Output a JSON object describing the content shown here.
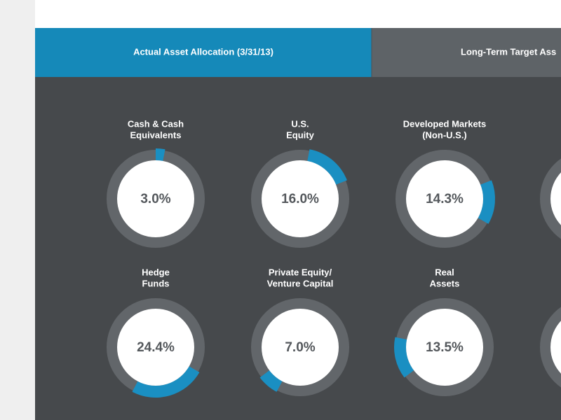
{
  "tabs": [
    "Actual Asset Allocation (3/31/13)",
    "Long-Term Target Ass"
  ],
  "chart_data": [
    {
      "type": "donut",
      "title": [
        "Cash & Cash",
        "Equivalents"
      ],
      "values": [
        3
      ],
      "value_labels": [
        "3.0%"
      ],
      "color": "#1a8fc2"
    },
    {
      "type": "donut",
      "title": [
        "U.S.",
        "Equity"
      ],
      "values": [
        16
      ],
      "value_labels": [
        "16.0%"
      ],
      "color": "#1a8fc2"
    },
    {
      "type": "donut",
      "title": [
        "Developed Markets",
        "(Non-U.S.)"
      ],
      "values": [
        14.3
      ],
      "value_labels": [
        "14.3%"
      ],
      "color": "#1a8fc2"
    },
    {
      "type": "donut",
      "title": [
        "Hedge",
        "Funds"
      ],
      "values": [
        24.4
      ],
      "value_labels": [
        "24.4%"
      ],
      "color": "#1a8fc2"
    },
    {
      "type": "donut",
      "title": [
        "Private Equity/",
        "Venture Capital"
      ],
      "values": [
        7
      ],
      "value_labels": [
        "7.0%"
      ],
      "color": "#1a8fc2"
    },
    {
      "type": "donut",
      "title": [
        "Real",
        "Assets"
      ],
      "values": [
        13.5
      ],
      "value_labels": [
        "13.5%"
      ],
      "color": "#1a8fc2"
    }
  ]
}
